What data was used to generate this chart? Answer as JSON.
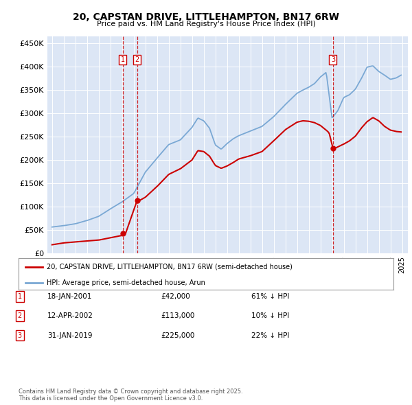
{
  "title": "20, CAPSTAN DRIVE, LITTLEHAMPTON, BN17 6RW",
  "subtitle": "Price paid vs. HM Land Registry's House Price Index (HPI)",
  "legend_line1": "20, CAPSTAN DRIVE, LITTLEHAMPTON, BN17 6RW (semi-detached house)",
  "legend_line2": "HPI: Average price, semi-detached house, Arun",
  "transactions": [
    {
      "num": "1",
      "date": "18-JAN-2001",
      "price": "£42,000",
      "note": "61% ↓ HPI"
    },
    {
      "num": "2",
      "date": "12-APR-2002",
      "price": "£113,000",
      "note": "10% ↓ HPI"
    },
    {
      "num": "3",
      "date": "31-JAN-2019",
      "price": "£225,000",
      "note": "22% ↓ HPI"
    }
  ],
  "footer": "Contains HM Land Registry data © Crown copyright and database right 2025.\nThis data is licensed under the Open Government Licence v3.0.",
  "ylim": [
    0,
    465000
  ],
  "yticks": [
    0,
    50000,
    100000,
    150000,
    200000,
    250000,
    300000,
    350000,
    400000,
    450000
  ],
  "plot_bg_color": "#dce6f5",
  "red_color": "#cc0000",
  "blue_color": "#7aa8d4",
  "transaction_dates": [
    2001.05,
    2002.29,
    2019.08
  ],
  "transaction_prices": [
    42000,
    113000,
    225000
  ],
  "transaction_labels": [
    "1",
    "2",
    "3"
  ]
}
